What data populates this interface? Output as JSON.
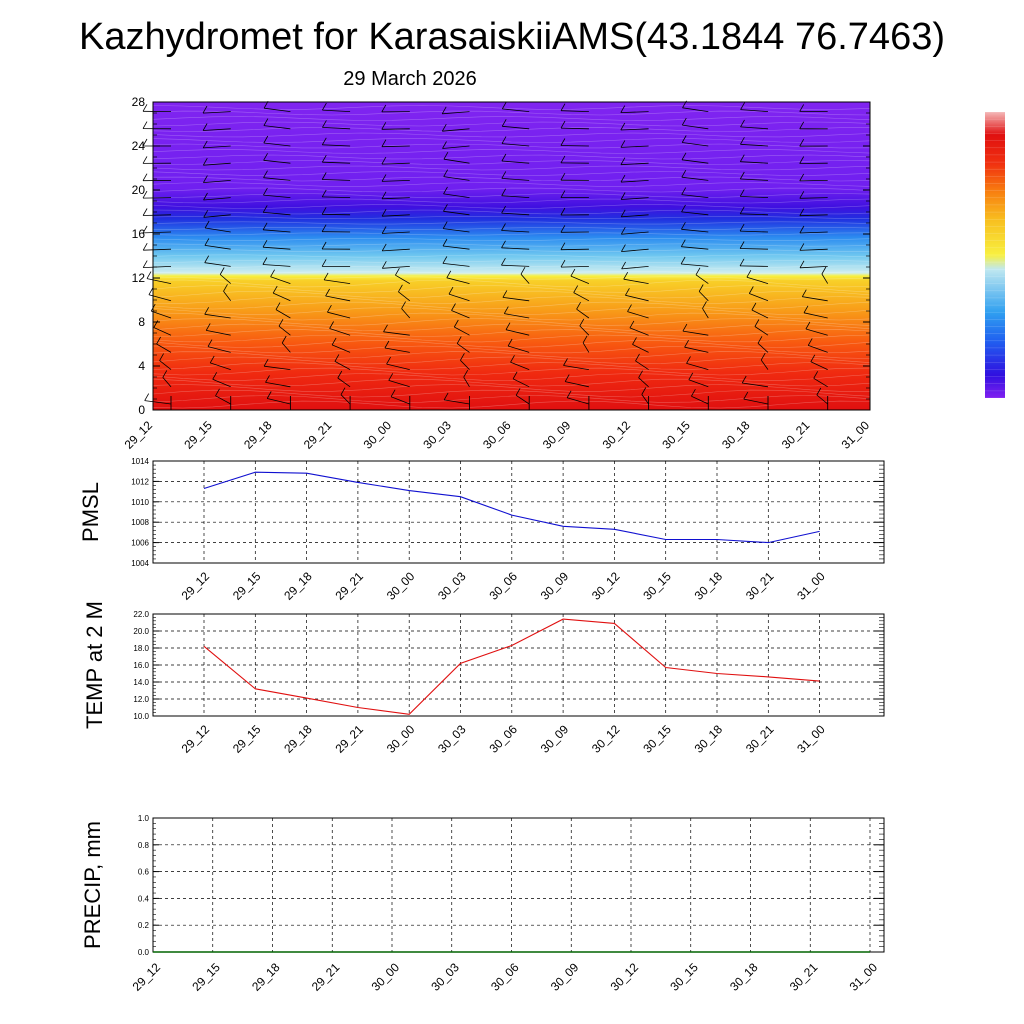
{
  "header": {
    "title": "Kazhydromet for KarasaiskiiAMS(43.1844 76.7463)",
    "date": "29 March 2026"
  },
  "colors": {
    "pmsl_line": "#1010d0",
    "temp_line": "#e01010",
    "precip_line": "#006400",
    "palette": [
      "#8020f0",
      "#3010e0",
      "#2060f0",
      "#30a0f0",
      "#b0e0f0",
      "#f8f040",
      "#f8c020",
      "#f89010",
      "#f85010",
      "#f02010",
      "#e01010",
      "#f0b0b0"
    ]
  },
  "chart_data": [
    {
      "type": "heatmap",
      "id": "cross-section",
      "title": "",
      "xlabel": "",
      "ylabel": "",
      "categories": [
        "29_12",
        "29_15",
        "29_18",
        "29_21",
        "30_00",
        "30_03",
        "30_06",
        "30_09",
        "30_12",
        "30_15",
        "30_18",
        "30_21",
        "31_00"
      ],
      "yticks": [
        0,
        4,
        8,
        12,
        16,
        20,
        24,
        28
      ],
      "ylim": [
        0,
        28
      ],
      "layers": [
        {
          "from": 0,
          "to": 6,
          "color_group": "red"
        },
        {
          "from": 6,
          "to": 12,
          "color_group": "orange-yellow"
        },
        {
          "from": 12,
          "to": 18,
          "color_group": "cyan-blue"
        },
        {
          "from": 18,
          "to": 28,
          "color_group": "violet"
        }
      ],
      "wind_barbs": true,
      "colorbar": "right"
    },
    {
      "type": "line",
      "id": "pmsl",
      "ylabel": "PMSL",
      "categories": [
        "29_12",
        "29_15",
        "29_18",
        "29_21",
        "30_00",
        "30_03",
        "30_06",
        "30_09",
        "30_12",
        "30_15",
        "30_18",
        "30_21",
        "31_00"
      ],
      "yticks": [
        "1004",
        "1006",
        "1008",
        "1010",
        "1012",
        "1014"
      ],
      "ylim": [
        1004,
        1014
      ],
      "series": [
        {
          "values": [
            1011.3,
            1012.9,
            1012.8,
            1011.9,
            1011.1,
            1010.5,
            1008.7,
            1007.6,
            1007.3,
            1006.3,
            1006.3,
            1006.0,
            1007.1
          ]
        }
      ],
      "grid": true
    },
    {
      "type": "line",
      "id": "temp",
      "ylabel": "TEMP at 2 M",
      "categories": [
        "29_12",
        "29_15",
        "29_18",
        "29_21",
        "30_00",
        "30_03",
        "30_06",
        "30_09",
        "30_12",
        "30_15",
        "30_18",
        "30_21",
        "31_00"
      ],
      "yticks": [
        "10.0",
        "12.0",
        "14.0",
        "16.0",
        "18.0",
        "20.0",
        "22.0"
      ],
      "ylim": [
        10,
        22
      ],
      "series": [
        {
          "values": [
            18.2,
            13.2,
            12.1,
            11.0,
            10.2,
            16.2,
            18.3,
            21.4,
            20.9,
            15.7,
            15.0,
            14.6,
            14.1
          ]
        }
      ],
      "grid": true
    },
    {
      "type": "line",
      "id": "precip",
      "ylabel": "PRECIP, mm",
      "categories": [
        "29_12",
        "29_15",
        "29_18",
        "29_21",
        "30_00",
        "30_03",
        "30_06",
        "30_09",
        "30_12",
        "30_15",
        "30_18",
        "30_21",
        "31_00"
      ],
      "yticks": [
        "0.0",
        "0.2",
        "0.4",
        "0.6",
        "0.8",
        "1.0"
      ],
      "ylim": [
        0,
        1
      ],
      "series": [
        {
          "values": [
            0,
            0,
            0,
            0,
            0,
            0,
            0,
            0,
            0,
            0,
            0,
            0,
            0
          ]
        }
      ],
      "grid": true
    }
  ]
}
